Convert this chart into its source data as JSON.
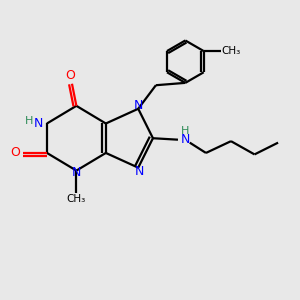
{
  "bg_color": "#e8e8e8",
  "atom_colors": {
    "N": "#0000ff",
    "O": "#ff0000",
    "H_label": "#2e8b57"
  },
  "bond_color": "#000000",
  "line_width": 1.6,
  "fig_size": [
    3.0,
    3.0
  ],
  "dpi": 100,
  "xlim": [
    0,
    10
  ],
  "ylim": [
    0,
    10
  ]
}
